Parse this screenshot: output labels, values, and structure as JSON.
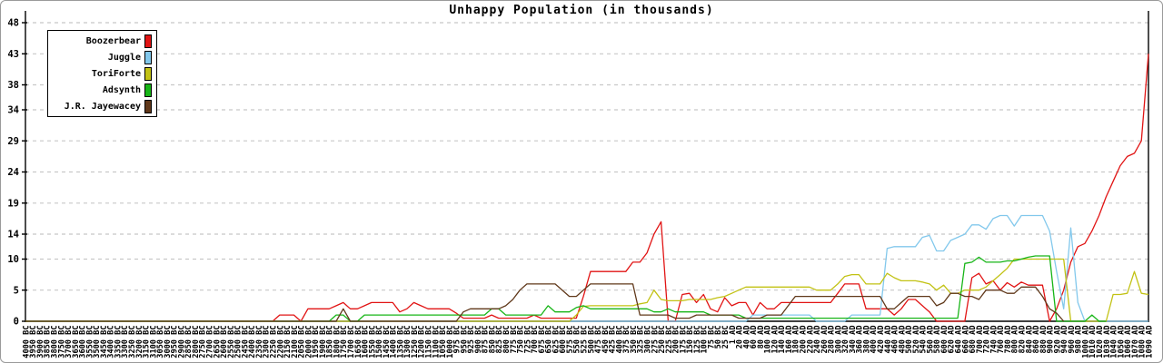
{
  "title": "Unhappy Population (in thousands)",
  "chart_data": {
    "type": "line",
    "title": "Unhappy Population (in thousands)",
    "xlabel": "",
    "ylabel": "",
    "ylim": [
      0,
      48
    ],
    "y_ticks": [
      0,
      5,
      10,
      14,
      19,
      24,
      29,
      34,
      38,
      43,
      48
    ],
    "grid": "dashed-horizontal",
    "legend_position": "top-left",
    "grid_color": "#c8c8c8",
    "axis_color": "#000000",
    "x_labels": [
      "4000 BC",
      "3950 BC",
      "3900 BC",
      "3850 BC",
      "3800 BC",
      "3750 BC",
      "3700 BC",
      "3650 BC",
      "3600 BC",
      "3550 BC",
      "3500 BC",
      "3450 BC",
      "3400 BC",
      "3350 BC",
      "3300 BC",
      "3250 BC",
      "3200 BC",
      "3150 BC",
      "3100 BC",
      "3050 BC",
      "3000 BC",
      "2950 BC",
      "2900 BC",
      "2850 BC",
      "2800 BC",
      "2750 BC",
      "2700 BC",
      "2650 BC",
      "2600 BC",
      "2550 BC",
      "2500 BC",
      "2450 BC",
      "2400 BC",
      "2350 BC",
      "2300 BC",
      "2250 BC",
      "2200 BC",
      "2150 BC",
      "2100 BC",
      "2050 BC",
      "2000 BC",
      "1950 BC",
      "1900 BC",
      "1850 BC",
      "1800 BC",
      "1750 BC",
      "1700 BC",
      "1650 BC",
      "1600 BC",
      "1550 BC",
      "1500 BC",
      "1450 BC",
      "1400 BC",
      "1350 BC",
      "1300 BC",
      "1250 BC",
      "1200 BC",
      "1150 BC",
      "1100 BC",
      "1050 BC",
      "1000 BC",
      "975 BC",
      "950 BC",
      "925 BC",
      "900 BC",
      "875 BC",
      "850 BC",
      "825 BC",
      "800 BC",
      "775 BC",
      "750 BC",
      "725 BC",
      "700 BC",
      "675 BC",
      "650 BC",
      "625 BC",
      "600 BC",
      "575 BC",
      "550 BC",
      "525 BC",
      "500 BC",
      "475 BC",
      "450 BC",
      "425 BC",
      "400 BC",
      "375 BC",
      "350 BC",
      "325 BC",
      "300 BC",
      "275 BC",
      "250 BC",
      "225 BC",
      "200 BC",
      "175 BC",
      "150 BC",
      "125 BC",
      "100 BC",
      "75 BC",
      "50 BC",
      "25 BC",
      "1 AD",
      "20 AD",
      "40 AD",
      "60 AD",
      "80 AD",
      "100 AD",
      "120 AD",
      "140 AD",
      "160 AD",
      "180 AD",
      "200 AD",
      "220 AD",
      "240 AD",
      "260 AD",
      "280 AD",
      "300 AD",
      "320 AD",
      "340 AD",
      "360 AD",
      "380 AD",
      "400 AD",
      "420 AD",
      "440 AD",
      "460 AD",
      "480 AD",
      "500 AD",
      "520 AD",
      "540 AD",
      "560 AD",
      "580 AD",
      "600 AD",
      "620 AD",
      "640 AD",
      "660 AD",
      "680 AD",
      "700 AD",
      "720 AD",
      "740 AD",
      "760 AD",
      "780 AD",
      "800 AD",
      "820 AD",
      "840 AD",
      "860 AD",
      "880 AD",
      "900 AD",
      "920 AD",
      "940 AD",
      "960 AD",
      "980 AD",
      "1000 AD",
      "1010 AD",
      "1020 AD",
      "1030 AD",
      "1040 AD",
      "1050 AD",
      "1060 AD",
      "1070 AD",
      "1080 AD",
      "1090 AD"
    ],
    "series": [
      {
        "name": "Boozerbear",
        "color": "#e11414",
        "values": [
          0,
          0,
          0,
          0,
          0,
          0,
          0,
          0,
          0,
          0,
          0,
          0,
          0,
          0,
          0,
          0,
          0,
          0,
          0,
          0,
          0,
          0,
          0,
          0,
          0,
          0,
          0,
          0,
          0,
          0,
          0,
          0,
          0,
          0,
          0,
          0,
          1,
          1,
          1,
          0,
          2,
          2,
          2,
          2,
          2.5,
          3,
          2,
          2,
          2.5,
          3,
          3,
          3,
          3,
          1.5,
          2,
          3,
          2.5,
          2,
          2,
          2,
          2,
          1.3,
          0.5,
          0.5,
          0.5,
          0.5,
          1,
          0.5,
          0.5,
          0.5,
          0.5,
          0.5,
          1,
          0.5,
          0.5,
          0.5,
          0.5,
          0.5,
          0.5,
          4,
          8,
          8,
          8,
          8,
          8,
          8,
          9.5,
          9.5,
          11,
          14,
          16,
          0,
          0,
          4.3,
          4.5,
          3,
          4.3,
          2,
          1.5,
          3.8,
          2.5,
          3,
          3,
          1,
          3,
          2,
          2,
          3,
          3,
          3,
          3,
          3,
          3,
          3,
          3,
          4.5,
          6,
          6,
          6,
          2,
          2,
          2,
          2,
          1,
          2,
          3.5,
          3.5,
          2.5,
          1.5,
          0,
          0,
          0,
          0,
          0,
          7,
          7.7,
          6,
          6.5,
          5,
          6.2,
          5.5,
          6.3,
          5.8,
          5.8,
          5.8,
          0,
          2,
          5,
          9.5,
          12,
          12.5,
          14.5,
          17,
          20,
          22.5,
          25,
          26.5,
          27,
          29,
          43
        ]
      },
      {
        "name": "Juggle",
        "color": "#82c8ec",
        "values": [
          0,
          0,
          0,
          0,
          0,
          0,
          0,
          0,
          0,
          0,
          0,
          0,
          0,
          0,
          0,
          0,
          0,
          0,
          0,
          0,
          0,
          0,
          0,
          0,
          0,
          0,
          0,
          0,
          0,
          0,
          0,
          0,
          0,
          0,
          0,
          0,
          0,
          0,
          0,
          0,
          0,
          0,
          0,
          0,
          0,
          0,
          0,
          0,
          0,
          0,
          0,
          0,
          0,
          0,
          0,
          0,
          0,
          0,
          0,
          0,
          0,
          0,
          0,
          0,
          0,
          0,
          0,
          0,
          0,
          0,
          0,
          0,
          0,
          0,
          0,
          0,
          0,
          0,
          0,
          0,
          0,
          0,
          0,
          0,
          0,
          0,
          0,
          0,
          0,
          0,
          0,
          0,
          0,
          0,
          0,
          0,
          0,
          0,
          0,
          0,
          0,
          0,
          0,
          1,
          1,
          1,
          1,
          1,
          1,
          1,
          1,
          1,
          0,
          0,
          0,
          0,
          0,
          1,
          1,
          1,
          1,
          1,
          11.7,
          12,
          12,
          12,
          12,
          13.5,
          13.8,
          11.3,
          11.3,
          13,
          13.5,
          14,
          15.5,
          15.5,
          14.8,
          16.5,
          17,
          17,
          15.3,
          17,
          17,
          17,
          17,
          14.5,
          8,
          2,
          15,
          3,
          0,
          0,
          0,
          0,
          0,
          0,
          0,
          0,
          0,
          0
        ]
      },
      {
        "name": "ToriForte",
        "color": "#c2c214",
        "values": [
          0,
          0,
          0,
          0,
          0,
          0,
          0,
          0,
          0,
          0,
          0,
          0,
          0,
          0,
          0,
          0,
          0,
          0,
          0,
          0,
          0,
          0,
          0,
          0,
          0,
          0,
          0,
          0,
          0,
          0,
          0,
          0,
          0,
          0,
          0,
          0,
          0,
          0,
          0,
          0,
          0,
          0,
          0,
          0,
          0,
          0,
          0,
          0,
          0,
          0,
          0,
          0,
          0,
          0,
          0,
          0,
          0,
          0,
          0,
          0,
          0,
          0,
          0,
          0,
          0,
          0,
          0,
          0,
          0,
          0,
          0,
          0,
          0,
          0,
          0,
          0,
          0,
          0,
          1,
          2.4,
          2.5,
          2.5,
          2.5,
          2.5,
          2.5,
          2.5,
          2.5,
          2.8,
          3,
          5,
          3.5,
          3.3,
          3.3,
          3.3,
          3.5,
          3.5,
          3.5,
          3.5,
          3.8,
          4,
          4.5,
          5,
          5.5,
          5.5,
          5.5,
          5.5,
          5.5,
          5.5,
          5.5,
          5.5,
          5.5,
          5.5,
          5,
          5,
          5,
          6,
          7.2,
          7.5,
          7.5,
          6,
          6,
          6,
          7.7,
          7,
          6.5,
          6.5,
          6.5,
          6.3,
          6,
          5,
          5.8,
          4.5,
          4.5,
          5,
          5,
          5,
          5.5,
          6.5,
          7.5,
          8.5,
          10,
          10,
          10,
          10,
          10,
          10,
          10,
          10,
          0,
          0,
          0,
          0,
          0,
          0,
          4.3,
          4.3,
          4.5,
          8,
          4.5,
          4.3
        ]
      },
      {
        "name": "Adsynth",
        "color": "#17b517",
        "values": [
          0,
          0,
          0,
          0,
          0,
          0,
          0,
          0,
          0,
          0,
          0,
          0,
          0,
          0,
          0,
          0,
          0,
          0,
          0,
          0,
          0,
          0,
          0,
          0,
          0,
          0,
          0,
          0,
          0,
          0,
          0,
          0,
          0,
          0,
          0,
          0,
          0,
          0,
          0,
          0,
          0,
          0,
          0,
          0,
          1,
          1,
          0,
          0,
          1,
          1,
          1,
          1,
          1,
          1,
          1,
          1,
          1,
          1,
          1,
          1,
          1,
          1,
          1,
          1,
          1,
          1,
          2,
          2,
          1,
          1,
          1,
          1,
          1,
          1,
          2.5,
          1.5,
          1.5,
          1.5,
          2.2,
          2.5,
          2,
          2,
          2,
          2,
          2,
          2,
          2,
          2,
          2,
          1.5,
          1.5,
          2,
          1.5,
          1.5,
          1.5,
          1.5,
          1.5,
          1,
          1,
          1,
          1,
          1,
          0.5,
          0.5,
          0.5,
          0.5,
          0.5,
          0.5,
          0.5,
          0.5,
          0.5,
          0.5,
          0.5,
          0.5,
          0.5,
          0.5,
          0.5,
          0.5,
          0.5,
          0.5,
          0.5,
          0.5,
          0.5,
          0.5,
          0.5,
          0.5,
          0.5,
          0.5,
          0.5,
          0.5,
          0.5,
          0.5,
          0.5,
          9.3,
          9.5,
          10.3,
          9.5,
          9.5,
          9.5,
          9.7,
          9.7,
          10,
          10.3,
          10.5,
          10.5,
          10.5,
          0,
          0,
          0,
          0,
          0,
          1,
          0,
          0,
          null,
          null,
          null,
          null,
          null,
          null,
          null
        ]
      },
      {
        "name": "J.R. Jayewacey",
        "color": "#60381a",
        "values": [
          0,
          0,
          0,
          0,
          0,
          0,
          0,
          0,
          0,
          0,
          0,
          0,
          0,
          0,
          0,
          0,
          0,
          0,
          0,
          0,
          0,
          0,
          0,
          0,
          0,
          0,
          0,
          0,
          0,
          0,
          0,
          0,
          0,
          0,
          0,
          0,
          0,
          0,
          0,
          0,
          0,
          0,
          0,
          0,
          0,
          2,
          0,
          0,
          0,
          0,
          0,
          0,
          0,
          0,
          0,
          0,
          0,
          0,
          0,
          0,
          0,
          0,
          1.5,
          2,
          2,
          2,
          2,
          2,
          2.5,
          3.5,
          5,
          6,
          6,
          6,
          6,
          6,
          5,
          4,
          4,
          5,
          6,
          6,
          6,
          6,
          6,
          6,
          6,
          1,
          1,
          1,
          1,
          1,
          0.5,
          0.5,
          0.5,
          1,
          1,
          1,
          1,
          1,
          1,
          0.5,
          0.5,
          0.5,
          0.5,
          1,
          1,
          1,
          2.5,
          4,
          4,
          4,
          4,
          4,
          4,
          4,
          4,
          4,
          4,
          4,
          4,
          4,
          2,
          2,
          3,
          4,
          4,
          4,
          4,
          2.5,
          3,
          4.5,
          4.5,
          4,
          4,
          3.5,
          5,
          5,
          5,
          4.5,
          4.5,
          5.5,
          5.5,
          5.5,
          4,
          2,
          1.3,
          0,
          null,
          null,
          null,
          null,
          null,
          null,
          null,
          null,
          null,
          null,
          null,
          null
        ]
      }
    ]
  }
}
